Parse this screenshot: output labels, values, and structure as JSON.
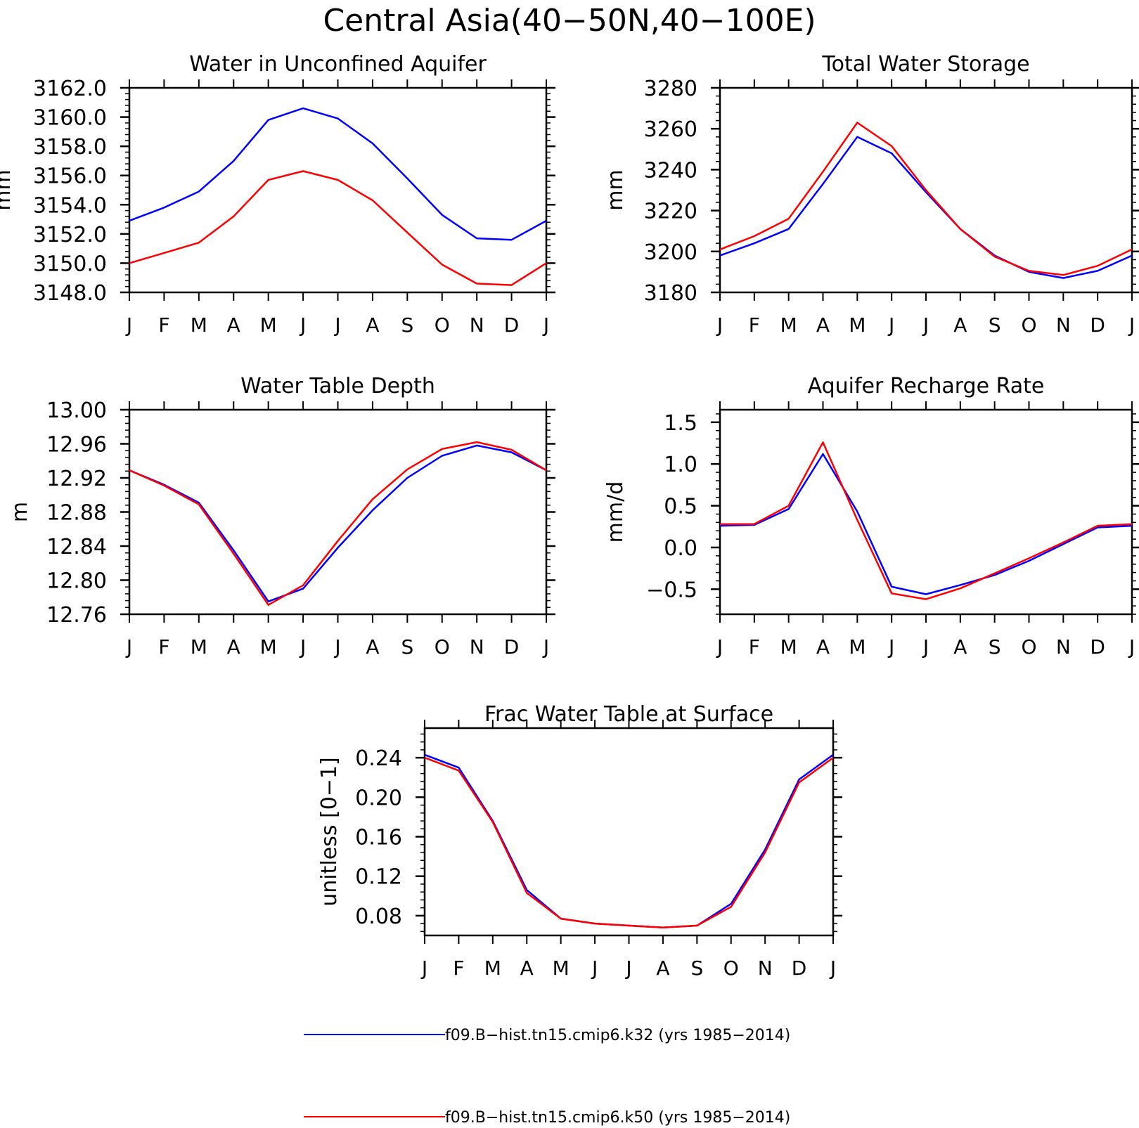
{
  "figure_title": "Central Asia(40−50N,40−100E)",
  "colors": {
    "k32": "#0000ff",
    "k50": "#ff0000",
    "axis": "#000000"
  },
  "legend": [
    {
      "key": "k32",
      "label": "f09.B−hist.tn15.cmip6.k32 (yrs 1985−2014)"
    },
    {
      "key": "k50",
      "label": "f09.B−hist.tn15.cmip6.k50 (yrs 1985−2014)"
    }
  ],
  "chart_data": [
    {
      "type": "line",
      "title": "Water in Unconfined Aquifer",
      "ylabel": "mm",
      "ylim": [
        3148,
        3162
      ],
      "yticks": [
        "3148.0",
        "3150.0",
        "3152.0",
        "3154.0",
        "3156.0",
        "3158.0",
        "3160.0",
        "3162.0"
      ],
      "categories": [
        "J",
        "F",
        "M",
        "A",
        "M",
        "J",
        "J",
        "A",
        "S",
        "O",
        "N",
        "D",
        "J"
      ],
      "series": [
        {
          "key": "k32",
          "values": [
            3152.9,
            3153.8,
            3154.9,
            3157.0,
            3159.8,
            3160.6,
            3159.9,
            3158.2,
            3155.8,
            3153.3,
            3151.7,
            3151.6,
            3152.9
          ]
        },
        {
          "key": "k50",
          "values": [
            3150.0,
            3150.7,
            3151.4,
            3153.2,
            3155.7,
            3156.3,
            3155.7,
            3154.3,
            3152.1,
            3149.9,
            3148.6,
            3148.5,
            3150.0
          ]
        }
      ]
    },
    {
      "type": "line",
      "title": "Total Water Storage",
      "ylabel": "mm",
      "ylim": [
        3180,
        3280
      ],
      "yticks": [
        "3180",
        "3200",
        "3220",
        "3240",
        "3260",
        "3280"
      ],
      "categories": [
        "J",
        "F",
        "M",
        "A",
        "M",
        "J",
        "J",
        "A",
        "S",
        "O",
        "N",
        "D",
        "J"
      ],
      "series": [
        {
          "key": "k32",
          "values": [
            3198,
            3204,
            3211,
            3233,
            3256,
            3248,
            3229,
            3211,
            3198,
            3190,
            3187,
            3190.5,
            3198
          ]
        },
        {
          "key": "k50",
          "values": [
            3201,
            3207.5,
            3216,
            3239,
            3263,
            3251.5,
            3230,
            3211,
            3197.5,
            3190.5,
            3188.5,
            3193,
            3201
          ]
        }
      ]
    },
    {
      "type": "line",
      "title": "Water Table Depth",
      "ylabel": "m",
      "ylim": [
        12.76,
        13.0
      ],
      "yticks": [
        "12.76",
        "12.80",
        "12.84",
        "12.88",
        "12.92",
        "12.96",
        "13.00"
      ],
      "categories": [
        "J",
        "F",
        "M",
        "A",
        "M",
        "J",
        "J",
        "A",
        "S",
        "O",
        "N",
        "D",
        "J"
      ],
      "series": [
        {
          "key": "k32",
          "values": [
            12.929,
            12.912,
            12.891,
            12.835,
            12.775,
            12.79,
            12.838,
            12.882,
            12.92,
            12.946,
            12.958,
            12.95,
            12.929
          ]
        },
        {
          "key": "k50",
          "values": [
            12.929,
            12.911,
            12.889,
            12.831,
            12.771,
            12.794,
            12.846,
            12.895,
            12.93,
            12.954,
            12.962,
            12.953,
            12.929
          ]
        }
      ]
    },
    {
      "type": "line",
      "title": "Aquifer Recharge Rate",
      "ylabel": "mm/d",
      "ylim": [
        -0.8,
        1.65
      ],
      "yticks": [
        "−0.5",
        "0.0",
        "0.5",
        "1.0",
        "1.5"
      ],
      "ytick_values": [
        -0.5,
        0.0,
        0.5,
        1.0,
        1.5
      ],
      "categories": [
        "J",
        "F",
        "M",
        "A",
        "M",
        "J",
        "J",
        "A",
        "S",
        "O",
        "N",
        "D",
        "J"
      ],
      "series": [
        {
          "key": "k32",
          "values": [
            0.26,
            0.27,
            0.46,
            1.12,
            0.43,
            -0.47,
            -0.56,
            -0.45,
            -0.33,
            -0.16,
            0.04,
            0.24,
            0.26
          ]
        },
        {
          "key": "k50",
          "values": [
            0.28,
            0.28,
            0.5,
            1.26,
            0.33,
            -0.55,
            -0.62,
            -0.49,
            -0.31,
            -0.13,
            0.06,
            0.26,
            0.28
          ]
        }
      ]
    },
    {
      "type": "line",
      "title": "Frac Water Table at Surface",
      "ylabel": "unitless [0−1]",
      "ylim": [
        0.06,
        0.27
      ],
      "yticks": [
        "0.08",
        "0.12",
        "0.16",
        "0.20",
        "0.24"
      ],
      "ytick_values": [
        0.08,
        0.12,
        0.16,
        0.2,
        0.24
      ],
      "categories": [
        "J",
        "F",
        "M",
        "A",
        "M",
        "J",
        "J",
        "A",
        "S",
        "O",
        "N",
        "D",
        "J"
      ],
      "series": [
        {
          "key": "k32",
          "values": [
            0.243,
            0.23,
            0.176,
            0.106,
            0.077,
            0.072,
            0.07,
            0.068,
            0.07,
            0.092,
            0.147,
            0.218,
            0.243
          ]
        },
        {
          "key": "k50",
          "values": [
            0.24,
            0.227,
            0.175,
            0.103,
            0.077,
            0.072,
            0.07,
            0.068,
            0.07,
            0.089,
            0.144,
            0.215,
            0.24
          ]
        }
      ]
    }
  ]
}
